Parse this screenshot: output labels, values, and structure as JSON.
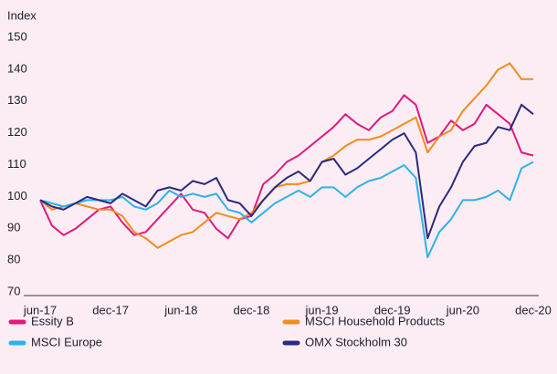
{
  "chart_data": {
    "type": "line",
    "y_label": "Index",
    "categories": [
      "jun-17",
      null,
      null,
      null,
      null,
      null,
      "dec-17",
      null,
      null,
      null,
      null,
      null,
      "jun-18",
      null,
      null,
      null,
      null,
      null,
      "dec-18",
      null,
      null,
      null,
      null,
      null,
      "jun-19",
      null,
      null,
      null,
      null,
      null,
      "dec-19",
      null,
      null,
      null,
      null,
      null,
      "jun-20",
      null,
      null,
      null,
      null,
      null,
      "dec-20"
    ],
    "ylim": [
      70,
      150
    ],
    "yticks": [
      70,
      80,
      90,
      100,
      110,
      120,
      130,
      140,
      150
    ],
    "grid": false,
    "legend": "bottom",
    "series": [
      {
        "name": "Essity B",
        "color": "#e0197d",
        "values": [
          100,
          92,
          89,
          91,
          94,
          97,
          98,
          93,
          89,
          90,
          94,
          98,
          102,
          97,
          96,
          91,
          88,
          94,
          95,
          105,
          108,
          112,
          114,
          117,
          120,
          123,
          127,
          124,
          122,
          126,
          128,
          133,
          130,
          118,
          120,
          125,
          122,
          124,
          130,
          127,
          124,
          115,
          114
        ]
      },
      {
        "name": "MSCI Household Products",
        "color": "#f28c1e",
        "values": [
          100,
          97,
          98,
          99,
          98,
          97,
          97,
          95,
          90,
          88,
          85,
          87,
          89,
          90,
          93,
          96,
          95,
          94,
          96,
          100,
          104,
          105,
          105,
          106,
          112,
          114,
          117,
          119,
          119,
          120,
          122,
          124,
          126,
          115,
          120,
          122,
          128,
          132,
          136,
          141,
          143,
          138,
          138
        ]
      },
      {
        "name": "MSCI Europe",
        "color": "#2db2e8",
        "values": [
          100,
          99,
          98,
          99,
          100,
          100,
          100,
          101,
          98,
          97,
          99,
          103,
          101,
          102,
          101,
          102,
          97,
          96,
          93,
          96,
          99,
          101,
          103,
          101,
          104,
          104,
          101,
          104,
          106,
          107,
          109,
          111,
          107,
          82,
          90,
          94,
          100,
          100,
          101,
          103,
          100,
          110,
          112
        ]
      },
      {
        "name": "OMX Stockholm 30",
        "color": "#2b2a7e",
        "values": [
          100,
          98,
          97,
          99,
          101,
          100,
          99,
          102,
          100,
          98,
          103,
          104,
          103,
          106,
          105,
          107,
          100,
          99,
          95,
          100,
          104,
          107,
          109,
          106,
          112,
          113,
          108,
          110,
          113,
          116,
          119,
          121,
          115,
          88,
          98,
          104,
          112,
          117,
          118,
          123,
          122,
          130,
          127
        ]
      }
    ]
  }
}
